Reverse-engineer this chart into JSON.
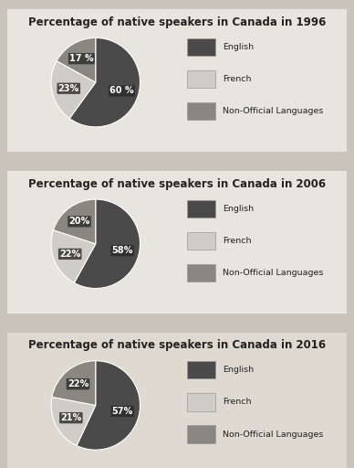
{
  "charts": [
    {
      "title": "Percentage of native speakers in Canada in 1996",
      "values": [
        60,
        23,
        17
      ],
      "labels": [
        "60 %",
        "23%",
        "17 %"
      ],
      "colors": [
        "#4a4a4a",
        "#d0cdc8",
        "#888880"
      ]
    },
    {
      "title": "Percentage of native speakers in Canada in 2006",
      "values": [
        58,
        22,
        20
      ],
      "labels": [
        "58%",
        "22%",
        "20%"
      ],
      "colors": [
        "#4a4a4a",
        "#d0cdc8",
        "#888880"
      ]
    },
    {
      "title": "Percentage of native speakers in Canada in 2016",
      "values": [
        57,
        21,
        22
      ],
      "labels": [
        "57%",
        "21%",
        "22%"
      ],
      "colors": [
        "#4a4a4a",
        "#d0cdc8",
        "#888880"
      ]
    }
  ],
  "legend_labels": [
    "English",
    "French",
    "Non-Official Languages"
  ],
  "legend_colors": [
    "#4a4a4a",
    "#d0cdc8",
    "#888880"
  ],
  "outer_bg": "#c8c4bc",
  "panel_bg_top": "#e8e5de",
  "panel_bg_bot": "#dedad2",
  "title_fontsize": 8.5,
  "label_fontsize": 7.0
}
